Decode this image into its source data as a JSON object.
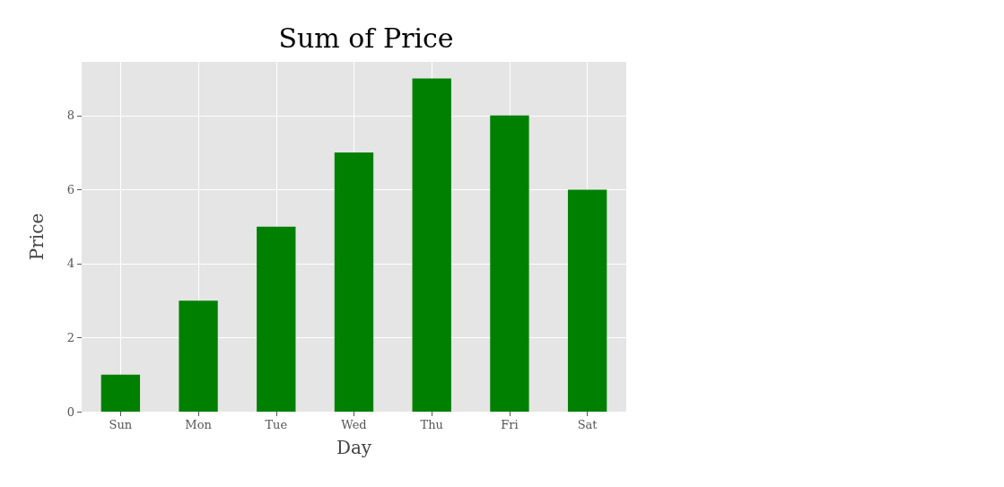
{
  "chart_data": {
    "type": "bar",
    "title": "Sum of Price",
    "xlabel": "Day",
    "ylabel": "Price",
    "categories": [
      "Sun",
      "Mon",
      "Tue",
      "Wed",
      "Thu",
      "Fri",
      "Sat"
    ],
    "values": [
      1,
      3,
      5,
      7,
      9,
      8,
      6
    ],
    "color": "#008000",
    "ylim": [
      0,
      9.45
    ],
    "yticks": [
      0,
      2,
      4,
      6,
      8
    ],
    "grid": true
  }
}
